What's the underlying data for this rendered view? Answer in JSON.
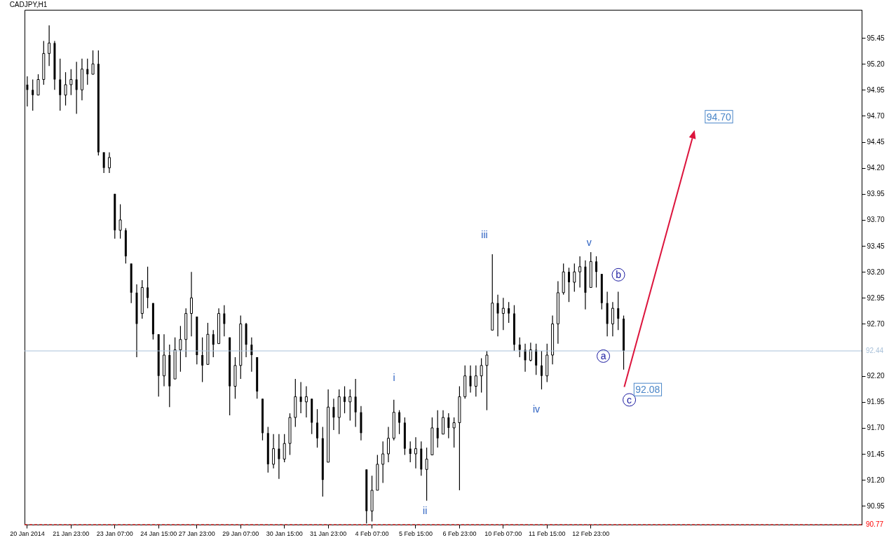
{
  "chart_data": {
    "type": "candlestick",
    "title": "CADJPY,H1",
    "color": "#000000",
    "categories": [
      "20 Jan 2014",
      null,
      null,
      null,
      null,
      null,
      null,
      null,
      "21 Jan 23:00",
      null,
      null,
      null,
      null,
      null,
      null,
      null,
      "23 Jan 07:00",
      null,
      null,
      null,
      null,
      null,
      null,
      null,
      "24 Jan 15:00",
      null,
      null,
      null,
      null,
      null,
      null,
      "27 Jan 23:00",
      null,
      null,
      null,
      null,
      null,
      null,
      null,
      "29 Jan 07:00",
      null,
      null,
      null,
      null,
      null,
      null,
      null,
      "30 Jan 15:00",
      null,
      null,
      null,
      null,
      null,
      null,
      null,
      "31 Jan 23:00",
      null,
      null,
      null,
      null,
      null,
      null,
      null,
      "4 Feb 07:00",
      null,
      null,
      null,
      null,
      null,
      null,
      null,
      "5 Feb 15:00",
      null,
      null,
      null,
      null,
      null,
      null,
      null,
      "6 Feb 23:00",
      null,
      null,
      null,
      null,
      null,
      null,
      null,
      "10 Feb 07:00",
      null,
      null,
      null,
      null,
      null,
      null,
      null,
      "11 Feb 15:00",
      null,
      null,
      null,
      null,
      null,
      null,
      null,
      "12 Feb 23:00",
      null,
      null,
      null,
      null,
      null,
      null,
      null,
      null,
      null,
      null,
      null,
      null,
      null,
      null,
      null,
      null,
      null,
      null,
      null,
      null,
      null,
      null,
      null,
      null,
      null,
      null,
      null,
      null,
      null,
      null,
      null,
      null,
      null,
      null,
      null,
      null,
      null,
      null,
      null,
      null,
      null,
      null,
      null,
      null,
      null,
      null,
      null,
      null,
      null
    ],
    "ohlc": [
      [
        95.0,
        95.08,
        94.79,
        94.95
      ],
      [
        94.95,
        95.05,
        94.75,
        94.9
      ],
      [
        94.9,
        95.1,
        94.9,
        95.05
      ],
      [
        95.05,
        95.42,
        95.0,
        95.3
      ],
      [
        95.3,
        95.57,
        95.18,
        95.4
      ],
      [
        95.4,
        95.42,
        94.95,
        95.05
      ],
      [
        95.05,
        95.25,
        94.75,
        94.9
      ],
      [
        94.9,
        95.12,
        94.8,
        95.0
      ],
      [
        95.0,
        95.15,
        94.9,
        95.05
      ],
      [
        95.05,
        95.22,
        94.72,
        94.95
      ],
      [
        94.95,
        95.25,
        94.85,
        95.15
      ],
      [
        95.15,
        95.25,
        95.0,
        95.1
      ],
      [
        95.1,
        95.33,
        95.1,
        95.2
      ],
      [
        95.2,
        95.33,
        94.32,
        94.35
      ],
      [
        94.35,
        94.35,
        94.15,
        94.2
      ],
      [
        94.2,
        94.35,
        94.15,
        94.3
      ],
      [
        93.95,
        93.95,
        93.52,
        93.6
      ],
      [
        93.6,
        93.85,
        93.52,
        93.7
      ],
      [
        93.6,
        93.62,
        93.28,
        93.35
      ],
      [
        93.28,
        93.28,
        92.9,
        93.0
      ],
      [
        93.0,
        93.08,
        92.38,
        92.7
      ],
      [
        92.8,
        93.12,
        92.75,
        93.05
      ],
      [
        93.05,
        93.25,
        92.85,
        92.95
      ],
      [
        92.9,
        92.9,
        92.55,
        92.6
      ],
      [
        92.6,
        92.6,
        92.0,
        92.2
      ],
      [
        92.2,
        92.6,
        92.1,
        92.4
      ],
      [
        92.4,
        92.5,
        91.9,
        92.1
      ],
      [
        92.17,
        92.57,
        92.17,
        92.45
      ],
      [
        92.45,
        92.68,
        92.24,
        92.55
      ],
      [
        92.55,
        92.85,
        92.38,
        92.8
      ],
      [
        92.8,
        93.2,
        92.58,
        92.95
      ],
      [
        92.77,
        92.77,
        92.31,
        92.4
      ],
      [
        92.4,
        92.57,
        92.14,
        92.3
      ],
      [
        92.31,
        92.71,
        92.31,
        92.6
      ],
      [
        92.6,
        92.64,
        92.38,
        92.5
      ],
      [
        92.51,
        92.85,
        92.51,
        92.8
      ],
      [
        92.8,
        92.88,
        92.58,
        92.7
      ],
      [
        92.57,
        92.57,
        91.82,
        92.1
      ],
      [
        92.1,
        92.38,
        91.98,
        92.3
      ],
      [
        92.3,
        92.78,
        92.17,
        92.7
      ],
      [
        92.7,
        92.71,
        92.38,
        92.5
      ],
      [
        92.5,
        92.57,
        92.24,
        92.4
      ],
      [
        92.38,
        92.38,
        91.98,
        92.05
      ],
      [
        91.98,
        91.98,
        91.58,
        91.65
      ],
      [
        91.65,
        91.71,
        91.27,
        91.35
      ],
      [
        91.35,
        91.64,
        91.31,
        91.5
      ],
      [
        91.5,
        91.64,
        91.21,
        91.4
      ],
      [
        91.4,
        91.64,
        91.37,
        91.55
      ],
      [
        91.55,
        91.84,
        91.44,
        91.8
      ],
      [
        91.8,
        92.17,
        91.71,
        92.0
      ],
      [
        92.0,
        92.14,
        91.84,
        91.95
      ],
      [
        91.95,
        92.1,
        91.8,
        92.0
      ],
      [
        91.98,
        91.98,
        91.64,
        91.75
      ],
      [
        91.75,
        91.88,
        91.51,
        91.6
      ],
      [
        91.6,
        91.71,
        91.04,
        91.2
      ],
      [
        91.37,
        92.07,
        91.37,
        91.9
      ],
      [
        91.9,
        91.98,
        91.68,
        91.8
      ],
      [
        91.8,
        92.07,
        91.64,
        92.0
      ],
      [
        92.0,
        92.1,
        91.84,
        91.95
      ],
      [
        91.95,
        92.07,
        91.77,
        92.0
      ],
      [
        92.0,
        92.17,
        91.71,
        91.85
      ],
      [
        91.85,
        91.91,
        91.58,
        91.65
      ],
      [
        91.3,
        91.3,
        90.78,
        90.9
      ],
      [
        90.9,
        91.24,
        90.8,
        91.1
      ],
      [
        91.1,
        91.44,
        91.1,
        91.35
      ],
      [
        91.35,
        91.57,
        91.17,
        91.45
      ],
      [
        91.45,
        91.71,
        91.37,
        91.6
      ],
      [
        91.6,
        91.97,
        91.58,
        91.85
      ],
      [
        91.85,
        91.87,
        91.64,
        91.75
      ],
      [
        91.75,
        91.8,
        91.44,
        91.5
      ],
      [
        91.5,
        91.57,
        91.37,
        91.45
      ],
      [
        91.45,
        91.61,
        91.31,
        91.5
      ],
      [
        91.5,
        91.57,
        91.24,
        91.3
      ],
      [
        91.3,
        91.51,
        91.0,
        91.4
      ],
      [
        91.44,
        91.8,
        91.44,
        91.7
      ],
      [
        91.7,
        91.87,
        91.51,
        91.6
      ],
      [
        91.64,
        91.87,
        91.64,
        91.8
      ],
      [
        91.8,
        91.84,
        91.6,
        91.7
      ],
      [
        91.7,
        91.8,
        91.51,
        91.75
      ],
      [
        91.75,
        92.1,
        91.1,
        92.0
      ],
      [
        92.0,
        92.3,
        91.98,
        92.2
      ],
      [
        92.2,
        92.3,
        92.04,
        92.1
      ],
      [
        92.1,
        92.3,
        92.0,
        92.2
      ],
      [
        92.2,
        92.37,
        92.04,
        92.3
      ],
      [
        92.3,
        92.44,
        91.87,
        92.4
      ],
      [
        92.64,
        93.37,
        92.64,
        92.9
      ],
      [
        92.9,
        92.98,
        92.58,
        92.8
      ],
      [
        92.8,
        92.95,
        92.64,
        92.85
      ],
      [
        92.85,
        92.91,
        92.71,
        92.8
      ],
      [
        92.8,
        92.88,
        92.44,
        92.5
      ],
      [
        92.5,
        92.57,
        92.38,
        92.45
      ],
      [
        92.45,
        92.51,
        92.24,
        92.35
      ],
      [
        92.35,
        92.52,
        92.34,
        92.45
      ],
      [
        92.45,
        92.51,
        92.21,
        92.3
      ],
      [
        92.3,
        92.44,
        92.07,
        92.2
      ],
      [
        92.2,
        92.51,
        92.14,
        92.4
      ],
      [
        92.4,
        92.78,
        92.31,
        92.7
      ],
      [
        92.7,
        93.11,
        92.51,
        93.0
      ],
      [
        93.0,
        93.28,
        92.98,
        93.2
      ],
      [
        93.2,
        93.24,
        92.91,
        93.1
      ],
      [
        93.1,
        93.28,
        93.01,
        93.2
      ],
      [
        93.2,
        93.35,
        93.05,
        93.25
      ],
      [
        93.25,
        93.31,
        92.84,
        93.0
      ],
      [
        93.05,
        93.39,
        93.05,
        93.3
      ],
      [
        93.3,
        93.35,
        93.05,
        93.2
      ],
      [
        93.18,
        93.18,
        92.84,
        92.9
      ],
      [
        92.9,
        93.01,
        92.58,
        92.7
      ],
      [
        92.7,
        92.91,
        92.58,
        92.85
      ],
      [
        92.85,
        93.01,
        92.64,
        92.75
      ],
      [
        92.75,
        92.78,
        92.26,
        92.44
      ],
      null,
      null,
      null,
      null,
      null,
      null,
      null,
      null,
      null,
      null,
      null,
      null,
      null,
      null,
      null,
      null,
      null,
      null,
      null,
      null,
      null,
      null,
      null,
      null,
      null,
      null,
      null,
      null,
      null,
      null,
      null,
      null,
      null,
      null,
      null,
      null,
      null,
      null,
      null,
      null,
      null,
      null,
      null
    ],
    "ylim": [
      90.77,
      95.72
    ],
    "yticks": [
      {
        "value": 90.95,
        "label": "90.95"
      },
      {
        "value": 91.2,
        "label": "91.20"
      },
      {
        "value": 91.45,
        "label": "91.45"
      },
      {
        "value": 91.7,
        "label": "91.70"
      },
      {
        "value": 91.95,
        "label": "91.95"
      },
      {
        "value": 92.2,
        "label": "92.20"
      },
      {
        "value": 92.7,
        "label": "92.70"
      },
      {
        "value": 92.95,
        "label": "92.95"
      },
      {
        "value": 93.2,
        "label": "93.20"
      },
      {
        "value": 93.45,
        "label": "93.45"
      },
      {
        "value": 93.7,
        "label": "93.70"
      },
      {
        "value": 93.95,
        "label": "93.95"
      },
      {
        "value": 94.2,
        "label": "94.20"
      },
      {
        "value": 94.45,
        "label": "94.45"
      },
      {
        "value": 94.7,
        "label": "94.70"
      },
      {
        "value": 94.95,
        "label": "94.95"
      },
      {
        "value": 95.2,
        "label": "95.20"
      },
      {
        "value": 95.45,
        "label": "95.45"
      }
    ],
    "ref_lines": [
      {
        "axis": "y",
        "value": 92.44,
        "label": "92.44",
        "color": "#a9c1d9",
        "line_style": "solid"
      },
      {
        "axis": "y",
        "value": 90.77,
        "label": "90.77",
        "color": "#ff0000",
        "line_style": "dashed"
      }
    ],
    "annotations": [
      "i",
      "ii",
      "iii",
      "iv",
      "v",
      "a",
      "b",
      "c",
      "92.08",
      "94.70"
    ]
  }
}
